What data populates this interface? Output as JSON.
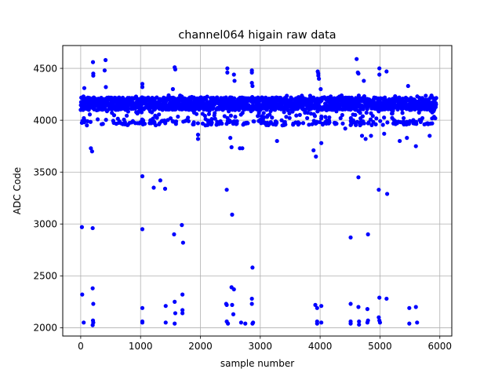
{
  "chart_data": {
    "type": "scatter",
    "title": "channel064 higain raw data",
    "xlabel": "sample number",
    "ylabel": "ADC Code",
    "xlim": [
      -300,
      6200
    ],
    "ylim": [
      1920,
      4720
    ],
    "xticks": [
      0,
      1000,
      2000,
      3000,
      4000,
      5000,
      6000
    ],
    "yticks": [
      2000,
      2500,
      3000,
      3500,
      4000,
      4500
    ],
    "grid": true,
    "legend": "none",
    "marker_color": "#0000ff",
    "band": {
      "x_range": [
        0,
        5940
      ],
      "core": [
        4100,
        4220
      ],
      "extended": [
        3960,
        4240
      ],
      "note_free": true
    },
    "series": [
      {
        "points": [
          [
            20,
            2970
          ],
          [
            25,
            2320
          ],
          [
            50,
            2050
          ],
          [
            60,
            4310
          ],
          [
            170,
            3730
          ],
          [
            190,
            3700
          ],
          [
            200,
            2960
          ],
          [
            200,
            2380
          ],
          [
            210,
            2230
          ],
          [
            205,
            2070
          ],
          [
            210,
            2050
          ],
          [
            200,
            2025
          ],
          [
            210,
            4450
          ],
          [
            210,
            4430
          ],
          [
            205,
            4560
          ],
          [
            415,
            4580
          ],
          [
            400,
            4480
          ],
          [
            420,
            4320
          ],
          [
            1030,
            4350
          ],
          [
            1030,
            4320
          ],
          [
            1030,
            3460
          ],
          [
            1030,
            2950
          ],
          [
            1030,
            2190
          ],
          [
            1030,
            2060
          ],
          [
            1030,
            2050
          ],
          [
            1040,
            4000
          ],
          [
            1040,
            3960
          ],
          [
            1220,
            3350
          ],
          [
            1330,
            3420
          ],
          [
            1410,
            3340
          ],
          [
            1420,
            2210
          ],
          [
            1420,
            2050
          ],
          [
            1540,
            4300
          ],
          [
            1570,
            4510
          ],
          [
            1580,
            4490
          ],
          [
            1560,
            2900
          ],
          [
            1570,
            2250
          ],
          [
            1580,
            2140
          ],
          [
            1570,
            2040
          ],
          [
            1690,
            2990
          ],
          [
            1710,
            2820
          ],
          [
            1700,
            2320
          ],
          [
            1700,
            2170
          ],
          [
            1700,
            2140
          ],
          [
            1960,
            3860
          ],
          [
            1960,
            3820
          ],
          [
            2440,
            3330
          ],
          [
            2450,
            4500
          ],
          [
            2450,
            4460
          ],
          [
            2430,
            2230
          ],
          [
            2440,
            2220
          ],
          [
            2440,
            2060
          ],
          [
            2460,
            2040
          ],
          [
            2500,
            3830
          ],
          [
            2520,
            3740
          ],
          [
            2530,
            3090
          ],
          [
            2520,
            2390
          ],
          [
            2530,
            2220
          ],
          [
            2560,
            2370
          ],
          [
            2550,
            2130
          ],
          [
            2560,
            4440
          ],
          [
            2570,
            4380
          ],
          [
            2660,
            3730
          ],
          [
            2700,
            3730
          ],
          [
            2680,
            2050
          ],
          [
            2750,
            2040
          ],
          [
            2860,
            4480
          ],
          [
            2860,
            4460
          ],
          [
            2860,
            4360
          ],
          [
            2870,
            4330
          ],
          [
            2870,
            2580
          ],
          [
            2860,
            2280
          ],
          [
            2860,
            2230
          ],
          [
            2880,
            2050
          ],
          [
            2870,
            2040
          ],
          [
            3280,
            3800
          ],
          [
            3890,
            3710
          ],
          [
            3930,
            3650
          ],
          [
            3920,
            2220
          ],
          [
            3950,
            2190
          ],
          [
            3950,
            2060
          ],
          [
            3950,
            2040
          ],
          [
            3960,
            4470
          ],
          [
            3970,
            4450
          ],
          [
            3970,
            4430
          ],
          [
            3980,
            4400
          ],
          [
            4010,
            4300
          ],
          [
            4020,
            3780
          ],
          [
            4020,
            2210
          ],
          [
            4020,
            2050
          ],
          [
            4370,
            4050
          ],
          [
            4420,
            3920
          ],
          [
            4510,
            2870
          ],
          [
            4510,
            2230
          ],
          [
            4510,
            2060
          ],
          [
            4510,
            2040
          ],
          [
            4610,
            4590
          ],
          [
            4630,
            4460
          ],
          [
            4640,
            4450
          ],
          [
            4640,
            3450
          ],
          [
            4640,
            2200
          ],
          [
            4650,
            2060
          ],
          [
            4650,
            2030
          ],
          [
            4700,
            3850
          ],
          [
            4730,
            4380
          ],
          [
            4760,
            3820
          ],
          [
            4800,
            2900
          ],
          [
            4790,
            2180
          ],
          [
            4800,
            2070
          ],
          [
            4790,
            2050
          ],
          [
            4850,
            3850
          ],
          [
            4990,
            4500
          ],
          [
            4990,
            4440
          ],
          [
            4980,
            3330
          ],
          [
            4990,
            2290
          ],
          [
            4980,
            2100
          ],
          [
            4990,
            2070
          ],
          [
            5000,
            2050
          ],
          [
            5070,
            3870
          ],
          [
            5120,
            3290
          ],
          [
            5110,
            2280
          ],
          [
            5110,
            4470
          ],
          [
            5330,
            3800
          ],
          [
            5450,
            3830
          ],
          [
            5470,
            4330
          ],
          [
            5490,
            2190
          ],
          [
            5490,
            2040
          ],
          [
            5600,
            2200
          ],
          [
            5620,
            2050
          ],
          [
            5600,
            3750
          ],
          [
            5830,
            3850
          ]
        ]
      }
    ]
  }
}
